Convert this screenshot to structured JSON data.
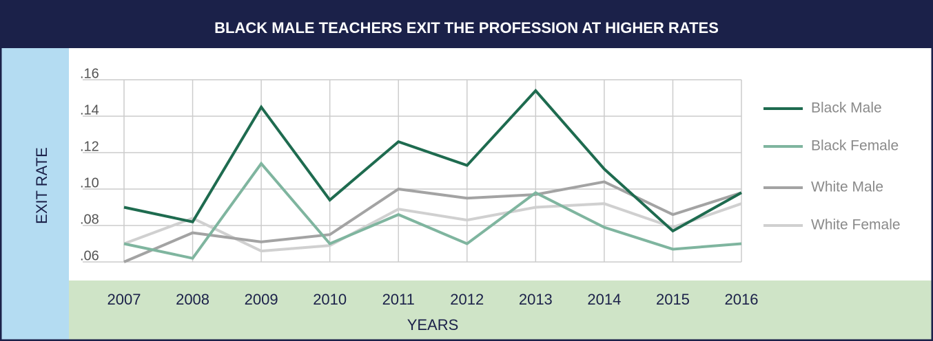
{
  "chart_data": {
    "type": "line",
    "title": "BLACK MALE TEACHERS EXIT THE PROFESSION AT HIGHER RATES",
    "y_label": "EXIT RATE",
    "x_label": "YEARS",
    "categories": [
      "2007",
      "2008",
      "2009",
      "2010",
      "2011",
      "2012",
      "2013",
      "2014",
      "2015",
      "2016"
    ],
    "series": [
      {
        "name": "Black Male",
        "color": "#1e6b4f",
        "values": [
          0.09,
          0.082,
          0.145,
          0.094,
          0.126,
          0.113,
          0.154,
          0.111,
          0.077,
          0.098
        ]
      },
      {
        "name": "Black Female",
        "color": "#7fb59f",
        "values": [
          0.07,
          0.062,
          0.114,
          0.07,
          0.086,
          0.07,
          0.098,
          0.079,
          0.067,
          0.07
        ]
      },
      {
        "name": "White Male",
        "color": "#a3a3a3",
        "values": [
          0.06,
          0.076,
          0.071,
          0.075,
          0.1,
          0.095,
          0.097,
          0.104,
          0.086,
          0.098
        ]
      },
      {
        "name": "White Female",
        "color": "#d0d0d0",
        "values": [
          0.07,
          0.084,
          0.066,
          0.069,
          0.089,
          0.083,
          0.09,
          0.092,
          0.079,
          0.092
        ]
      }
    ],
    "ylim": [
      0.06,
      0.16
    ],
    "yticks": [
      {
        "value": 0.06,
        "label": ".06"
      },
      {
        "value": 0.08,
        "label": ".08"
      },
      {
        "value": 0.1,
        "label": ".10"
      },
      {
        "value": 0.12,
        "label": ".12"
      },
      {
        "value": 0.14,
        "label": ".14"
      },
      {
        "value": 0.16,
        "label": ".16"
      }
    ],
    "grid": true,
    "legend": "right"
  }
}
